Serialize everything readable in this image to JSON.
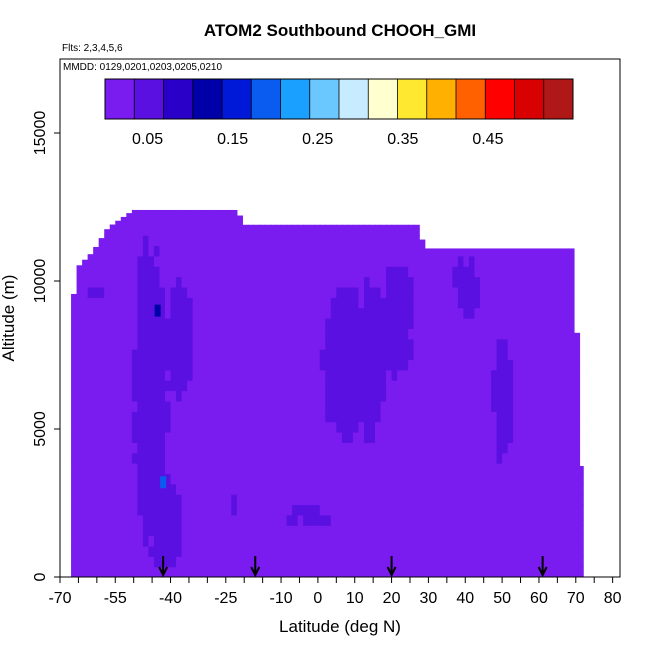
{
  "chart_data": {
    "type": "heatmap",
    "title": "ATOM2 Southbound CHOOH_GMI",
    "flights_label": "Flts: 2,3,4,5,6",
    "dates_label": "MMDD: 0129,0201,0203,0205,0210",
    "xlabel": "Latitude (deg N)",
    "ylabel": "Altitude (m)",
    "xlim": [
      -70,
      82
    ],
    "ylim": [
      0,
      17500
    ],
    "x_tick_labels": [
      -70,
      -55,
      -40,
      -25,
      -10,
      0,
      10,
      20,
      30,
      40,
      50,
      60,
      70,
      80
    ],
    "y_tick_labels": [
      0,
      5000,
      10000,
      15000
    ],
    "colorbar": {
      "range": [
        0,
        0.55
      ],
      "tick_values": [
        0.05,
        0.15,
        0.25,
        0.35,
        0.45
      ],
      "colors": [
        "#7a1cf0",
        "#5a10e0",
        "#2a00c8",
        "#0000a8",
        "#0018d8",
        "#0a5cf0",
        "#1aa0ff",
        "#6ac8ff",
        "#c8ecff",
        "#ffffd0",
        "#ffe830",
        "#ffb000",
        "#ff6000",
        "#ff0000",
        "#d80000",
        "#b01818"
      ]
    },
    "background_value": 0.02,
    "data_extent": {
      "lat_min": -67,
      "lat_max": 72,
      "top_profile": [
        {
          "lat": -67,
          "alt": 9000
        },
        {
          "lat": -65,
          "alt": 10500
        },
        {
          "lat": -61,
          "alt": 11000
        },
        {
          "lat": -57,
          "alt": 11800
        },
        {
          "lat": -50,
          "alt": 12400
        },
        {
          "lat": -22,
          "alt": 12400
        },
        {
          "lat": -20,
          "alt": 11900
        },
        {
          "lat": 27,
          "alt": 11900
        },
        {
          "lat": 29,
          "alt": 11100
        },
        {
          "lat": 69,
          "alt": 11100
        },
        {
          "lat": 70,
          "alt": 9000
        },
        {
          "lat": 72,
          "alt": 3000
        }
      ]
    },
    "features": [
      {
        "lat_min": -51,
        "lat_max": -40,
        "alt_min": 0,
        "alt_max": 12400,
        "value": 0.05
      },
      {
        "lat_min": -46,
        "lat_max": -36,
        "alt_min": 0,
        "alt_max": 3500,
        "value": 0.06
      },
      {
        "lat_min": -63,
        "lat_max": -58,
        "alt_min": 9500,
        "alt_max": 10000,
        "value": 0.05
      },
      {
        "lat_min": -42,
        "lat_max": -33,
        "alt_min": 5500,
        "alt_max": 10500,
        "value": 0.045
      },
      {
        "lat_min": 0,
        "lat_max": 15,
        "alt_min": 4000,
        "alt_max": 10500,
        "value": 0.05
      },
      {
        "lat_min": 10,
        "lat_max": 19,
        "alt_min": 4000,
        "alt_max": 10500,
        "value": 0.048
      },
      {
        "lat_min": 16,
        "lat_max": 27,
        "alt_min": 6500,
        "alt_max": 11000,
        "value": 0.045
      },
      {
        "lat_min": 36,
        "lat_max": 45,
        "alt_min": 8500,
        "alt_max": 11000,
        "value": 0.04
      },
      {
        "lat_min": 47,
        "lat_max": 54,
        "alt_min": 3500,
        "alt_max": 8500,
        "value": 0.05
      },
      {
        "lat_min": -10,
        "lat_max": 5,
        "alt_min": 1500,
        "alt_max": 2500,
        "value": 0.04
      },
      {
        "lat_min": -27,
        "lat_max": -18,
        "alt_min": 2000,
        "alt_max": 3500,
        "value": 0.035
      }
    ],
    "high_points": [
      {
        "lat": -43.5,
        "alt": 9000,
        "value": 0.13
      },
      {
        "lat": -42,
        "alt": 3200,
        "value": 0.18
      }
    ],
    "arrow_latitudes": [
      -42,
      -17,
      20,
      61
    ]
  }
}
